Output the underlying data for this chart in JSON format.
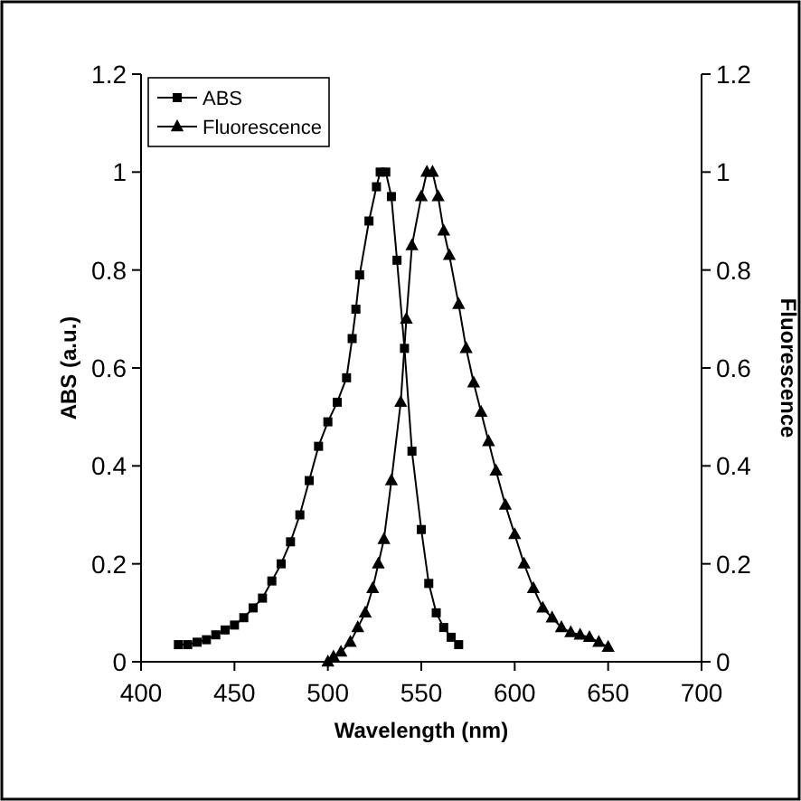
{
  "chart_data": {
    "type": "line",
    "xlabel": "Wavelength (nm)",
    "ylabel": "ABS (a.u.)",
    "y2label": "Fluorescence",
    "xlim": [
      400,
      700
    ],
    "xticks": [
      400,
      450,
      500,
      550,
      600,
      650,
      700
    ],
    "ylim": [
      0,
      1.2
    ],
    "yticks": [
      0,
      0.2,
      0.4,
      0.6,
      0.8,
      1,
      1.2
    ],
    "y2lim": [
      0,
      1.2
    ],
    "y2ticks": [
      0,
      0.2,
      0.4,
      0.6,
      0.8,
      1,
      1.2
    ],
    "grid": false,
    "legend": "top left",
    "line_style": "solid",
    "series": [
      {
        "name": "ABS",
        "color": "#000000",
        "marker": "square",
        "x": [
          420,
          425,
          430,
          435,
          440,
          445,
          450,
          455,
          460,
          465,
          470,
          475,
          480,
          485,
          490,
          495,
          500,
          505,
          510,
          513,
          515,
          517,
          522,
          526,
          528,
          531,
          534,
          537,
          541,
          545,
          550,
          554,
          558,
          562,
          566,
          570
        ],
        "values": [
          0.035,
          0.035,
          0.04,
          0.045,
          0.055,
          0.065,
          0.075,
          0.09,
          0.11,
          0.13,
          0.165,
          0.2,
          0.245,
          0.3,
          0.37,
          0.44,
          0.49,
          0.53,
          0.58,
          0.66,
          0.72,
          0.79,
          0.9,
          0.97,
          1.0,
          1.0,
          0.95,
          0.82,
          0.64,
          0.43,
          0.27,
          0.16,
          0.1,
          0.07,
          0.05,
          0.035
        ]
      },
      {
        "name": "Fluorescence",
        "color": "#000000",
        "marker": "triangle",
        "x": [
          500,
          503,
          507,
          512,
          516,
          520,
          524,
          527,
          530,
          534,
          539,
          542,
          545,
          550,
          553,
          556,
          559,
          562,
          565,
          570,
          574,
          578,
          582,
          586,
          590,
          595,
          600,
          605,
          610,
          615,
          620,
          625,
          630,
          635,
          640,
          645,
          650
        ],
        "values": [
          0,
          0.01,
          0.02,
          0.04,
          0.07,
          0.1,
          0.15,
          0.2,
          0.25,
          0.37,
          0.53,
          0.7,
          0.85,
          0.95,
          1.0,
          1.0,
          0.95,
          0.88,
          0.83,
          0.73,
          0.64,
          0.57,
          0.51,
          0.45,
          0.39,
          0.32,
          0.26,
          0.2,
          0.15,
          0.11,
          0.09,
          0.07,
          0.06,
          0.055,
          0.05,
          0.04,
          0.03
        ]
      }
    ]
  }
}
